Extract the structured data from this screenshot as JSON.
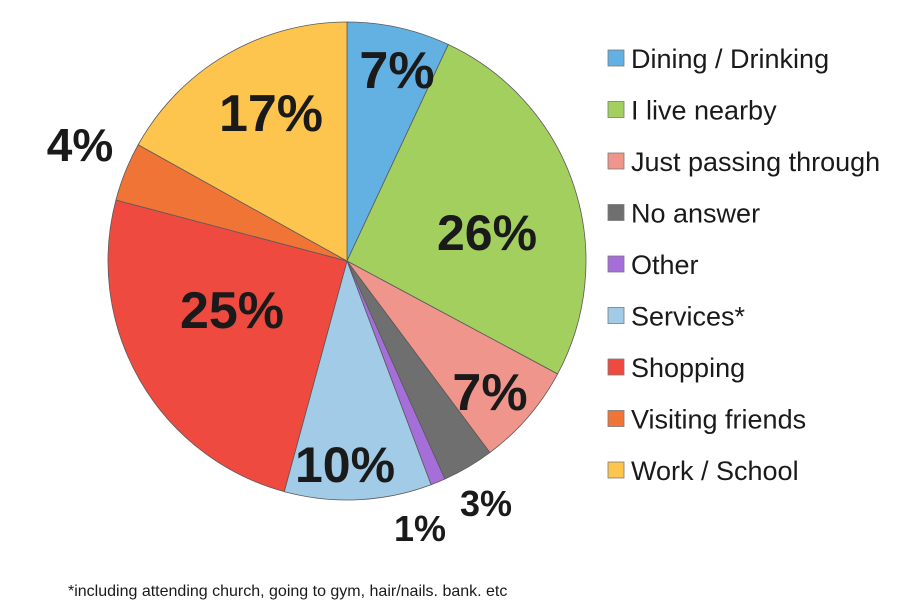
{
  "chart_data": {
    "type": "pie",
    "start_angle_deg": -90,
    "direction": "clockwise",
    "slices": [
      {
        "label": "Dining / Drinking",
        "value": 7,
        "display": "7%",
        "color": "#63b1e2"
      },
      {
        "label": "I live nearby",
        "value": 26,
        "display": "26%",
        "color": "#a3cf5e"
      },
      {
        "label": "Just passing through",
        "value": 7,
        "display": "7%",
        "color": "#ef958c"
      },
      {
        "label": "No answer",
        "value": 3.5,
        "display": "3%",
        "color": "#6f6f6f"
      },
      {
        "label": "Other",
        "value": 1,
        "display": "1%",
        "color": "#a56ed9"
      },
      {
        "label": "Services*",
        "value": 10,
        "display": "10%",
        "color": "#a1cbe6"
      },
      {
        "label": "Shopping",
        "value": 25,
        "display": "25%",
        "color": "#ee4a3f"
      },
      {
        "label": "Visiting friends",
        "value": 4,
        "display": "4%",
        "color": "#f07436"
      },
      {
        "label": "Work / School",
        "value": 17,
        "display": "17%",
        "color": "#fdc54d"
      }
    ],
    "legend_position": "right",
    "footnote": "*including attending church, going to gym, hair/nails. bank. etc"
  }
}
